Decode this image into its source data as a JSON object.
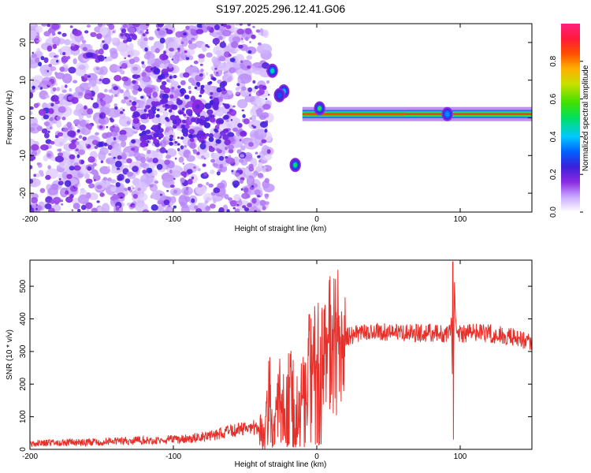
{
  "title": "S197.2025.296.12.41.G06",
  "chart_data": [
    {
      "type": "heatmap",
      "xlabel": "Height of straight line (km)",
      "ylabel": "Frequency (Hz)",
      "xlim": [
        -200,
        150
      ],
      "ylim": [
        -25,
        25
      ],
      "x_ticks": [
        -200,
        -100,
        0,
        100
      ],
      "x_tick_labels": [
        "-200",
        "-100",
        "0",
        "100"
      ],
      "y_ticks": [
        20,
        10,
        0,
        -10,
        -20
      ],
      "y_tick_labels": [
        "20",
        "10",
        "0",
        "-10",
        "-20"
      ],
      "colorbar": {
        "label": "Normalized spectral amplitude",
        "range": [
          0,
          1
        ],
        "ticks": [
          0,
          0.2,
          0.4,
          0.6,
          0.8
        ],
        "tick_labels": [
          "0.0",
          "0.2",
          "0.4",
          "0.6",
          "0.8"
        ]
      },
      "features": {
        "noise_region_x": [
          -200,
          -33
        ],
        "gap_x": [
          -33,
          -11
        ],
        "carrier_line": {
          "x_start": -10,
          "x_end": 150,
          "frequency_hz": 1,
          "peak_amplitude": 0.85
        },
        "blobs": [
          {
            "x": -31,
            "frequency_hz": 12.5,
            "amplitude": 0.45
          },
          {
            "x": -23,
            "frequency_hz": 7,
            "amplitude": 0.4
          },
          {
            "x": -26,
            "frequency_hz": 6,
            "amplitude": 0.3
          },
          {
            "x": -15,
            "frequency_hz": -12.5,
            "amplitude": 0.5
          },
          {
            "x": -83,
            "frequency_hz": 3,
            "amplitude": 0.2
          },
          {
            "x": 2,
            "frequency_hz": 2.5,
            "amplitude": 0.55
          },
          {
            "x": 91,
            "frequency_hz": 1,
            "amplitude": 0.35
          }
        ]
      },
      "grid": false
    },
    {
      "type": "line",
      "xlabel": "Height of straight line (km)",
      "ylabel": "SNR (10 * v/v)",
      "xlim": [
        -200,
        150
      ],
      "ylim": [
        0,
        580
      ],
      "x_ticks": [
        -200,
        -100,
        0,
        100
      ],
      "x_tick_labels": [
        "-200",
        "-100",
        "0",
        "100"
      ],
      "y_ticks": [
        0,
        100,
        200,
        300,
        400,
        500
      ],
      "y_tick_labels": [
        "0",
        "100",
        "200",
        "300",
        "400",
        "500"
      ],
      "color": "#e8302b",
      "series": [
        {
          "x": [
            -200,
            -180,
            -160,
            -140,
            -120,
            -100,
            -90,
            -80,
            -70,
            -60,
            -50,
            -45,
            -40,
            -36,
            -34,
            -33,
            -31,
            -29,
            -27,
            -25,
            -22,
            -20,
            -18,
            -15,
            -12,
            -10,
            -8,
            -5,
            -2,
            0,
            5,
            10,
            15,
            20,
            25,
            30,
            40,
            50,
            60,
            70,
            80,
            90,
            94,
            95,
            96,
            97,
            100,
            110,
            120,
            130,
            140,
            150
          ],
          "y": [
            18,
            20,
            22,
            25,
            28,
            30,
            32,
            38,
            45,
            55,
            65,
            70,
            60,
            35,
            140,
            210,
            40,
            60,
            150,
            200,
            80,
            180,
            230,
            160,
            170,
            250,
            200,
            260,
            270,
            280,
            300,
            320,
            330,
            345,
            350,
            355,
            360,
            360,
            360,
            355,
            358,
            355,
            380,
            60,
            520,
            380,
            350,
            360,
            355,
            350,
            340,
            330
          ]
        }
      ],
      "annotations": [
        {
          "x": 95,
          "y_peak": 580,
          "y_trough": 30,
          "note": "spike"
        }
      ],
      "grid": false
    }
  ]
}
